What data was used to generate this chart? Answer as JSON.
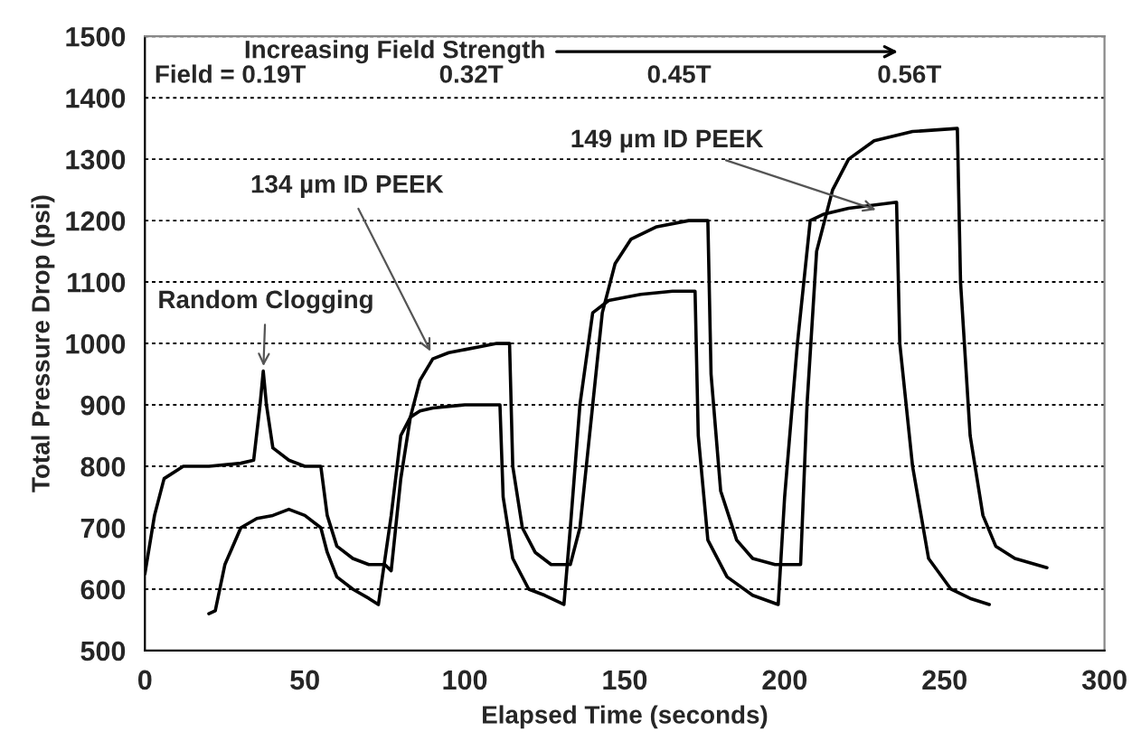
{
  "chart_data": {
    "type": "line",
    "xlabel": "Elapsed Time (seconds)",
    "ylabel": "Total Pressure Drop (psi)",
    "xlim": [
      0,
      300
    ],
    "xticks": [
      0,
      50,
      100,
      150,
      200,
      250,
      300
    ],
    "ylim": [
      500,
      1500
    ],
    "yticks": [
      500,
      600,
      700,
      800,
      900,
      1000,
      1100,
      1200,
      1300,
      1400,
      1500
    ],
    "grid": "y",
    "legend": false,
    "marker": "none",
    "line_style": "solid",
    "series": [
      {
        "color": "#000000",
        "x": [
          0,
          3,
          6,
          12,
          20,
          30,
          34,
          36,
          37,
          38,
          40,
          45,
          50,
          55,
          57,
          60,
          65,
          70,
          75,
          77,
          80,
          83,
          86,
          90,
          95,
          100,
          105,
          110,
          114,
          115,
          118,
          122,
          127,
          133,
          136,
          140,
          143,
          147,
          152,
          160,
          170,
          176,
          177,
          180,
          185,
          190,
          197,
          205,
          207,
          210,
          215,
          220,
          228,
          240,
          254,
          255,
          258,
          262,
          266,
          272,
          282
        ],
        "values": [
          625,
          720,
          780,
          800,
          800,
          805,
          810,
          900,
          955,
          900,
          830,
          810,
          800,
          800,
          720,
          670,
          650,
          640,
          640,
          630,
          780,
          880,
          940,
          975,
          985,
          990,
          995,
          1000,
          1000,
          800,
          700,
          660,
          640,
          640,
          700,
          900,
          1050,
          1130,
          1170,
          1190,
          1200,
          1200,
          950,
          760,
          680,
          650,
          640,
          640,
          900,
          1150,
          1250,
          1300,
          1330,
          1345,
          1350,
          1100,
          850,
          720,
          670,
          650,
          635
        ]
      },
      {
        "color": "#000000",
        "x": [
          20,
          22,
          25,
          30,
          35,
          40,
          45,
          50,
          55,
          57,
          60,
          65,
          70,
          73,
          77,
          80,
          83,
          86,
          90,
          100,
          111,
          112,
          115,
          120,
          125,
          131,
          133,
          136,
          140,
          145,
          155,
          165,
          172,
          173,
          176,
          182,
          190,
          198,
          200,
          204,
          208,
          212,
          220,
          235,
          236,
          240,
          245,
          252,
          258,
          264
        ],
        "values": [
          560,
          565,
          640,
          700,
          715,
          720,
          730,
          720,
          700,
          660,
          620,
          600,
          585,
          575,
          720,
          850,
          880,
          890,
          895,
          900,
          900,
          750,
          650,
          600,
          590,
          575,
          700,
          900,
          1050,
          1070,
          1080,
          1085,
          1085,
          850,
          680,
          620,
          590,
          575,
          750,
          1000,
          1200,
          1210,
          1220,
          1230,
          1000,
          800,
          650,
          600,
          585,
          575
        ]
      }
    ],
    "annotations": [
      {
        "text": "Random Clogging",
        "x": 37,
        "y": 955
      },
      {
        "text": "134 µm ID PEEK",
        "x": 90,
        "y": 980
      },
      {
        "text": "149 µm ID PEEK",
        "x": 230,
        "y": 1215
      },
      "Increasing Field Strength",
      "Field = 0.19T",
      "0.32T",
      "0.45T",
      "0.56T"
    ]
  }
}
